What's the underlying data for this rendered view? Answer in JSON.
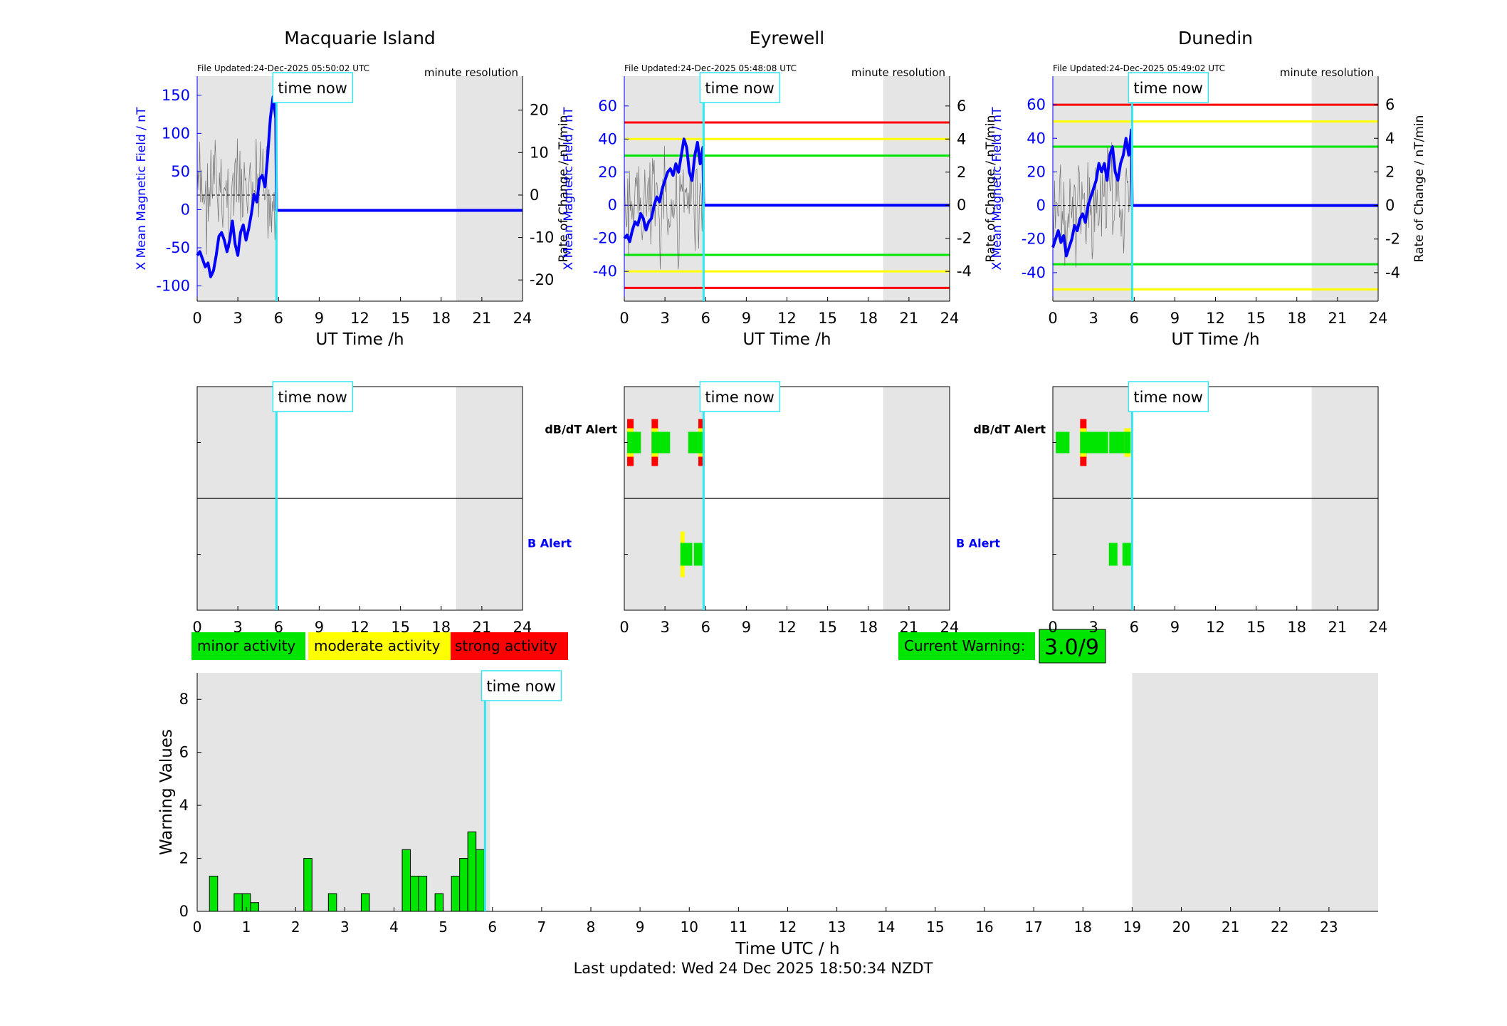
{
  "footer": {
    "last_updated": "Last updated: Wed 24 Dec 2025 18:50:34 NZDT"
  },
  "legend": {
    "minor": "minor activity",
    "moderate": "moderate activity",
    "strong": "strong activity"
  },
  "current_warning": {
    "label": "Current Warning:",
    "value": "3.0/9"
  },
  "colors": {
    "minor": "#00e600",
    "moderate": "#ffff00",
    "strong": "#ff0000",
    "time_now": "#33e6f2",
    "shade": "#e5e5e5",
    "mean_field": "#0000ff",
    "rate_of_change": "#555555",
    "b_alert_label": "#0000ff"
  },
  "chart_data": [
    {
      "type": "line",
      "title": "Macquarie Island",
      "file_updated": "File Updated:24-Dec-2025 05:50:02 UTC",
      "resolution": "minute resolution",
      "time_now_label": "time now",
      "time_now_h": 5.85,
      "xlabel": "UT Time /h",
      "ylabel": "X Mean Magnetic Field / nT",
      "ylabel_right": "Rate of Change / nT/min",
      "xlim": [
        0,
        24
      ],
      "ylim": [
        -120,
        175
      ],
      "ylim_right": [
        -25,
        28
      ],
      "xticks": [
        "0",
        "3",
        "6",
        "9",
        "12",
        "15",
        "18",
        "21",
        "24"
      ],
      "yticks": [
        "-100",
        "-50",
        "0",
        "50",
        "100",
        "150"
      ],
      "yticks_right": [
        "-20",
        "-10",
        "0",
        "10",
        "20"
      ],
      "shaded_hours": [
        [
          0,
          5.85
        ],
        [
          19.1,
          24
        ]
      ],
      "threshold_lines": [],
      "series": [
        {
          "values_x": [
            0,
            0.2,
            0.4,
            0.6,
            0.8,
            1.0,
            1.2,
            1.4,
            1.6,
            1.8,
            2.0,
            2.2,
            2.4,
            2.6,
            2.8,
            3.0,
            3.2,
            3.4,
            3.6,
            3.8,
            4.0,
            4.2,
            4.4,
            4.6,
            4.8,
            5.0,
            5.2,
            5.4,
            5.6,
            5.8,
            5.85,
            24
          ],
          "values_y": [
            -60,
            -55,
            -65,
            -75,
            -70,
            -88,
            -80,
            -60,
            -35,
            -30,
            -40,
            -55,
            -40,
            -15,
            -45,
            -60,
            -30,
            -20,
            -40,
            -25,
            -5,
            20,
            10,
            40,
            45,
            30,
            70,
            120,
            148,
            120,
            -1,
            -1
          ]
        }
      ]
    },
    {
      "type": "line",
      "title": "Eyrewell",
      "file_updated": "File Updated:24-Dec-2025 05:48:08 UTC",
      "resolution": "minute resolution",
      "time_now_label": "time now",
      "time_now_h": 5.85,
      "xlabel": "UT Time /h",
      "ylabel": "X Mean Magnetic Field / nT",
      "ylabel_right": "Rate of Change / nT/min",
      "xlim": [
        0,
        24
      ],
      "ylim": [
        -58,
        78
      ],
      "ylim_right": [
        -5.8,
        7.8
      ],
      "xticks": [
        "0",
        "3",
        "6",
        "9",
        "12",
        "15",
        "18",
        "21",
        "24"
      ],
      "yticks": [
        "-40",
        "-20",
        "0",
        "20",
        "40",
        "60"
      ],
      "yticks_right": [
        "-4",
        "-2",
        "0",
        "2",
        "4",
        "6"
      ],
      "shaded_hours": [
        [
          0,
          5.85
        ],
        [
          19.1,
          24
        ]
      ],
      "threshold_lines": [
        {
          "y": 50,
          "level": "strong"
        },
        {
          "y": 40,
          "level": "moderate"
        },
        {
          "y": 30,
          "level": "minor"
        },
        {
          "y": -30,
          "level": "minor"
        },
        {
          "y": -40,
          "level": "moderate"
        },
        {
          "y": -50,
          "level": "strong"
        }
      ],
      "series": [
        {
          "values_x": [
            0,
            0.2,
            0.4,
            0.6,
            0.8,
            1.0,
            1.2,
            1.4,
            1.6,
            1.8,
            2.0,
            2.2,
            2.4,
            2.6,
            2.8,
            3.0,
            3.2,
            3.4,
            3.6,
            3.8,
            4.0,
            4.2,
            4.4,
            4.6,
            4.8,
            5.0,
            5.2,
            5.4,
            5.6,
            5.8,
            5.85,
            24
          ],
          "values_y": [
            -20,
            -18,
            -22,
            -15,
            -10,
            -12,
            -5,
            -8,
            -15,
            -10,
            -8,
            0,
            5,
            2,
            10,
            15,
            20,
            22,
            18,
            25,
            20,
            30,
            40,
            35,
            20,
            15,
            30,
            38,
            25,
            35,
            0,
            0
          ]
        }
      ]
    },
    {
      "type": "line",
      "title": "Dunedin",
      "file_updated": "File Updated:24-Dec-2025 05:49:02 UTC",
      "resolution": "minute resolution",
      "time_now_label": "time now",
      "time_now_h": 5.85,
      "xlabel": "UT Time /h",
      "ylabel": "X Mean Magnetic Field / nT",
      "ylabel_right": "Rate of Change / nT/min",
      "xlim": [
        0,
        24
      ],
      "ylim": [
        -57,
        77
      ],
      "ylim_right": [
        -5.7,
        7.7
      ],
      "xticks": [
        "0",
        "3",
        "6",
        "9",
        "12",
        "15",
        "18",
        "21",
        "24"
      ],
      "yticks": [
        "-40",
        "-20",
        "0",
        "20",
        "40",
        "60"
      ],
      "yticks_right": [
        "-4",
        "-2",
        "0",
        "2",
        "4",
        "6"
      ],
      "shaded_hours": [
        [
          0,
          5.85
        ],
        [
          19.1,
          24
        ]
      ],
      "threshold_lines": [
        {
          "y": 60,
          "level": "strong"
        },
        {
          "y": 50,
          "level": "moderate"
        },
        {
          "y": 35,
          "level": "minor"
        },
        {
          "y": -35,
          "level": "minor"
        },
        {
          "y": -50,
          "level": "moderate"
        }
      ],
      "series": [
        {
          "values_x": [
            0,
            0.2,
            0.4,
            0.6,
            0.8,
            1.0,
            1.2,
            1.4,
            1.6,
            1.8,
            2.0,
            2.2,
            2.4,
            2.6,
            2.8,
            3.0,
            3.2,
            3.4,
            3.6,
            3.8,
            4.0,
            4.2,
            4.4,
            4.6,
            4.8,
            5.0,
            5.2,
            5.4,
            5.6,
            5.8,
            5.85,
            24
          ],
          "values_y": [
            -25,
            -20,
            -15,
            -22,
            -18,
            -30,
            -25,
            -20,
            -12,
            -15,
            -8,
            -5,
            -10,
            0,
            5,
            10,
            15,
            25,
            20,
            25,
            15,
            30,
            35,
            20,
            15,
            25,
            30,
            40,
            30,
            45,
            0,
            0
          ]
        }
      ]
    },
    {
      "type": "bar",
      "title": "",
      "panel": "alerts",
      "labels": {
        "dbdt": "dB/dT Alert",
        "b": "B Alert"
      },
      "xlim": [
        0,
        24
      ],
      "xticks": [
        "0",
        "3",
        "6",
        "9",
        "12",
        "15",
        "18",
        "21",
        "24"
      ],
      "time_now_label": "time now",
      "time_now_h": 5.85,
      "stations": [
        {
          "name": "Macquarie Island",
          "dbdt_alerts": [],
          "b_alerts": []
        },
        {
          "name": "Eyrewell",
          "dbdt_alerts": [
            {
              "t": 0.45,
              "level": "strong"
            },
            {
              "t": 0.85,
              "level": "minor"
            },
            {
              "t": 2.25,
              "level": "strong"
            },
            {
              "t": 2.65,
              "level": "minor"
            },
            {
              "t": 3.0,
              "level": "minor"
            },
            {
              "t": 4.95,
              "level": "minor"
            },
            {
              "t": 5.3,
              "level": "minor"
            },
            {
              "t": 5.7,
              "level": "strong"
            }
          ],
          "b_alerts": [
            {
              "t": 4.45,
              "level": "moderate"
            },
            {
              "t": 4.7,
              "level": "minor"
            },
            {
              "t": 5.45,
              "level": "minor"
            }
          ]
        },
        {
          "name": "Dunedin",
          "dbdt_alerts": [
            {
              "t": 0.45,
              "level": "minor"
            },
            {
              "t": 0.85,
              "level": "minor"
            },
            {
              "t": 2.25,
              "level": "strong"
            },
            {
              "t": 2.65,
              "level": "minor"
            },
            {
              "t": 3.2,
              "level": "minor"
            },
            {
              "t": 3.7,
              "level": "minor"
            },
            {
              "t": 4.4,
              "level": "minor"
            },
            {
              "t": 5.0,
              "level": "minor"
            },
            {
              "t": 5.5,
              "level": "moderate"
            }
          ],
          "b_alerts": [
            {
              "t": 4.45,
              "level": "minor"
            },
            {
              "t": 5.45,
              "level": "minor"
            }
          ]
        }
      ]
    },
    {
      "type": "bar",
      "title": "",
      "xlabel": "Time UTC / h",
      "ylabel": "Warning Values",
      "xlim": [
        0,
        24
      ],
      "ylim": [
        0,
        9
      ],
      "xticks": [
        "0",
        "1",
        "2",
        "3",
        "4",
        "5",
        "6",
        "7",
        "8",
        "9",
        "10",
        "11",
        "12",
        "13",
        "14",
        "15",
        "16",
        "17",
        "18",
        "19",
        "20",
        "21",
        "22",
        "23"
      ],
      "yticks": [
        "0",
        "2",
        "4",
        "6",
        "8"
      ],
      "time_now_label": "time now",
      "time_now_h": 5.85,
      "shaded_hours": [
        [
          0,
          5.95
        ],
        [
          19.0,
          24
        ]
      ],
      "bar_width_h": 0.1667,
      "x": [
        0.333,
        0.833,
        1.0,
        1.167,
        2.25,
        2.75,
        3.417,
        4.25,
        4.417,
        4.583,
        4.917,
        5.25,
        5.417,
        5.583,
        5.75
      ],
      "values": [
        1.33,
        0.67,
        0.67,
        0.33,
        2.0,
        0.67,
        0.67,
        2.33,
        1.33,
        1.33,
        0.67,
        1.33,
        2.0,
        3.0,
        2.33
      ]
    }
  ]
}
